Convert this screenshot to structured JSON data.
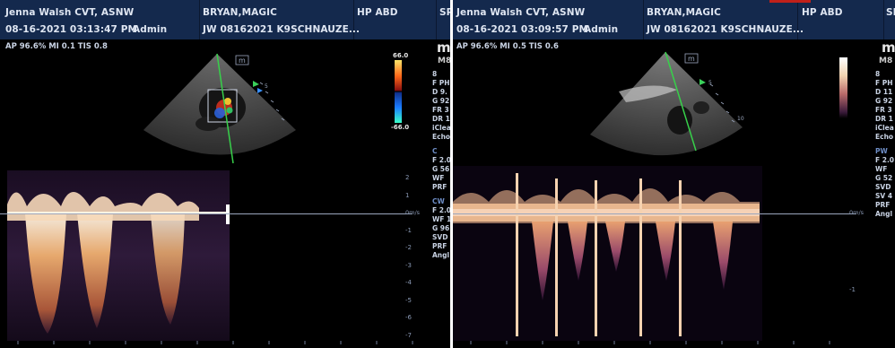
{
  "left": {
    "header": {
      "sonographer": "Jenna Walsh CVT, ASNW",
      "datetime": "08-16-2021 03:13:47 PM",
      "user": "Admin",
      "patient": "BRYAN,MAGIC",
      "patient_id": "JW 08162021 K9SCHNAUZE...",
      "preset": "HP ABD",
      "cut_text": "SP"
    },
    "params": "AP 96.6%  MI 0.1  TIS 0.8",
    "colorbar": {
      "top": "66.0",
      "bottom": "-66.0"
    },
    "brand": "mi",
    "model": "M8",
    "right_panel": [
      "8",
      "F PH",
      "D 9.",
      "G 92",
      "FR 3",
      "DR 1",
      "iClea",
      "Echo",
      "C",
      "F 2.0",
      "G 56",
      "WF",
      "PRF",
      "CW",
      "F 2.0",
      "WF 1",
      "G 96",
      "SVD",
      "PRF",
      "Angl"
    ],
    "right_panel_sections": [
      "C",
      "CW"
    ],
    "scale_labels": [
      "2",
      "1",
      "0m/s",
      "-1",
      "-2",
      "-3",
      "-4",
      "-5",
      "-6",
      "-7"
    ],
    "cm_labels": [
      "5"
    ]
  },
  "right": {
    "header": {
      "sonographer": "Jenna Walsh CVT, ASNW",
      "datetime": "08-16-2021 03:09:57 PM",
      "user": "Admin",
      "patient": "BRYAN,MAGIC",
      "patient_id": "JW 08162021 K9SCHNAUZE...",
      "preset": "HP ABD",
      "cut_text": "SP"
    },
    "params": "AP 96.6%  MI 0.5  TIS 0.6",
    "brand": "mi",
    "model": "M8",
    "right_panel": [
      "8",
      "F PH",
      "D 11",
      "G 92",
      "FR 3",
      "DR 1",
      "iClea",
      "Echo",
      "PW",
      "F 2.0",
      "WF",
      "G 52",
      "SVD",
      "SV 4",
      "PRF",
      "Angl"
    ],
    "right_panel_sections": [
      "PW"
    ],
    "scale_labels": [
      "0m/s",
      "-1"
    ],
    "cm_labels": [
      "5",
      "10"
    ]
  },
  "colors": {
    "header_bg": "#14294d",
    "spectral_bright": "#fff2dc",
    "spectral_mid": "#d9925a",
    "spectral_dim": "#5b2a55"
  }
}
